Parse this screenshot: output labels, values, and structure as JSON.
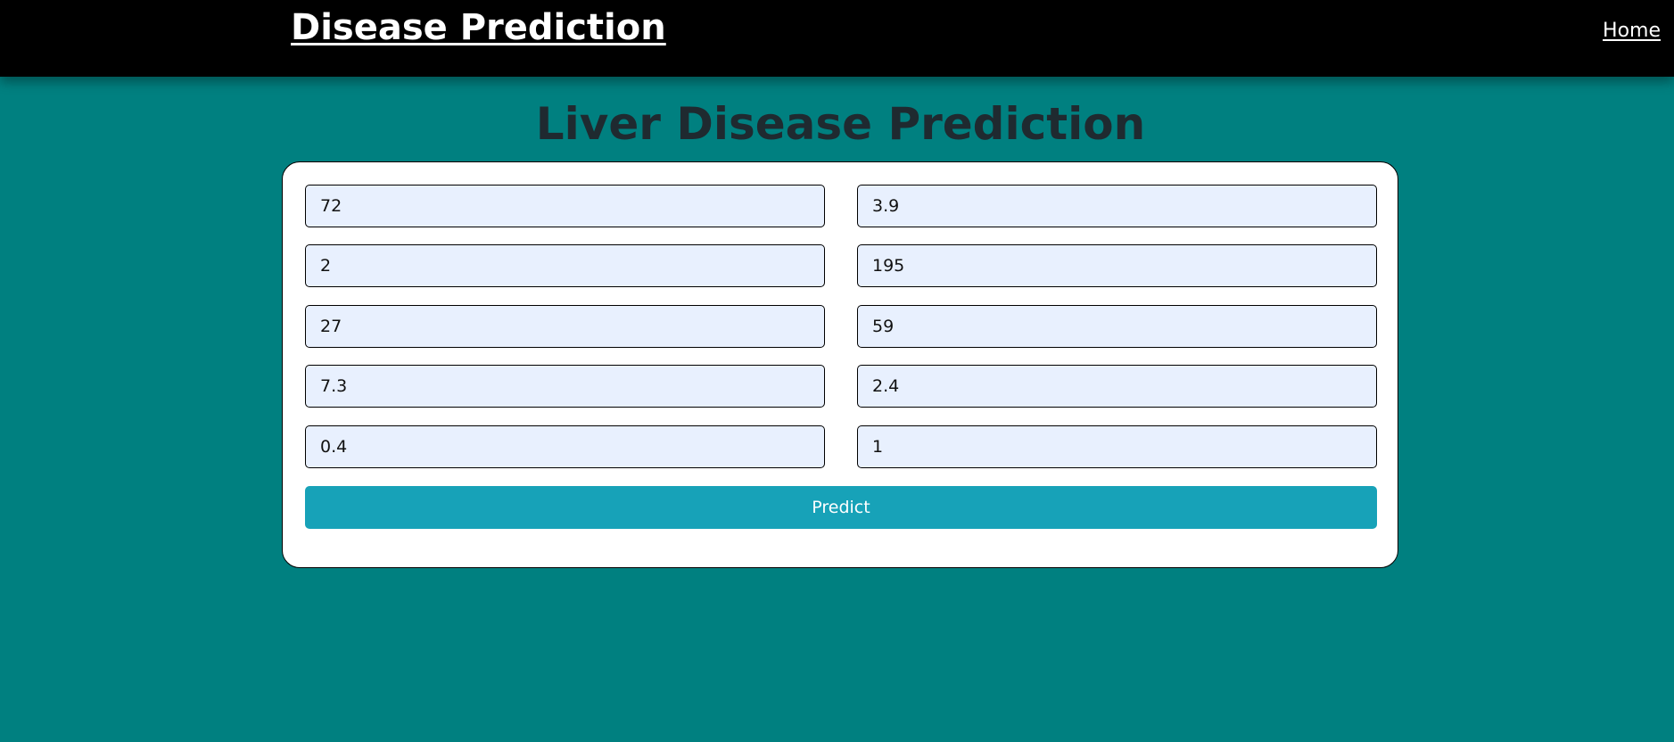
{
  "navbar": {
    "brand": "Disease Prediction",
    "home_link": "Home"
  },
  "page": {
    "title": "Liver Disease Prediction"
  },
  "form": {
    "fields": [
      {
        "value": "72"
      },
      {
        "value": "3.9"
      },
      {
        "value": "2"
      },
      {
        "value": "195"
      },
      {
        "value": "27"
      },
      {
        "value": "59"
      },
      {
        "value": "7.3"
      },
      {
        "value": "2.4"
      },
      {
        "value": "0.4"
      },
      {
        "value": "1"
      }
    ],
    "submit_label": "Predict"
  },
  "colors": {
    "background": "#008080",
    "navbar": "#000000",
    "input_fill": "#e8f0fe",
    "button": "#17a2b8"
  }
}
